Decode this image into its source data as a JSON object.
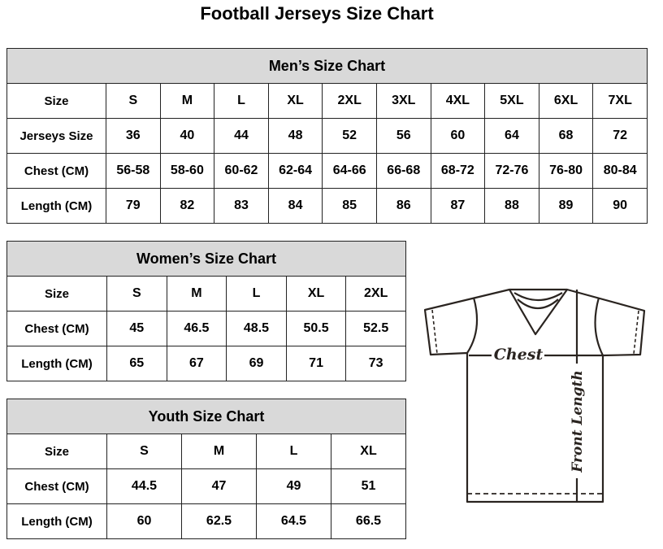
{
  "title": "Football Jerseys Size Chart",
  "men": {
    "heading": "Men’s Size Chart",
    "rows": [
      [
        "Size",
        "S",
        "M",
        "L",
        "XL",
        "2XL",
        "3XL",
        "4XL",
        "5XL",
        "6XL",
        "7XL"
      ],
      [
        "Jerseys Size",
        "36",
        "40",
        "44",
        "48",
        "52",
        "56",
        "60",
        "64",
        "68",
        "72"
      ],
      [
        "Chest (CM)",
        "56-58",
        "58-60",
        "60-62",
        "62-64",
        "64-66",
        "66-68",
        "68-72",
        "72-76",
        "76-80",
        "80-84"
      ],
      [
        "Length (CM)",
        "79",
        "82",
        "83",
        "84",
        "85",
        "86",
        "87",
        "88",
        "89",
        "90"
      ]
    ]
  },
  "women": {
    "heading": "Women’s Size Chart",
    "rows": [
      [
        "Size",
        "S",
        "M",
        "L",
        "XL",
        "2XL"
      ],
      [
        "Chest (CM)",
        "45",
        "46.5",
        "48.5",
        "50.5",
        "52.5"
      ],
      [
        "Length (CM)",
        "65",
        "67",
        "69",
        "71",
        "73"
      ]
    ]
  },
  "youth": {
    "heading": "Youth Size Chart",
    "rows": [
      [
        "Size",
        "S",
        "M",
        "L",
        "XL"
      ],
      [
        "Chest (CM)",
        "44.5",
        "47",
        "49",
        "51"
      ],
      [
        "Length (CM)",
        "60",
        "62.5",
        "64.5",
        "66.5"
      ]
    ]
  },
  "diagram": {
    "chest_label": "Chest",
    "length_label": "Front Length"
  },
  "colors": {
    "header_bg": "#d9d9d9",
    "border": "#222222"
  }
}
